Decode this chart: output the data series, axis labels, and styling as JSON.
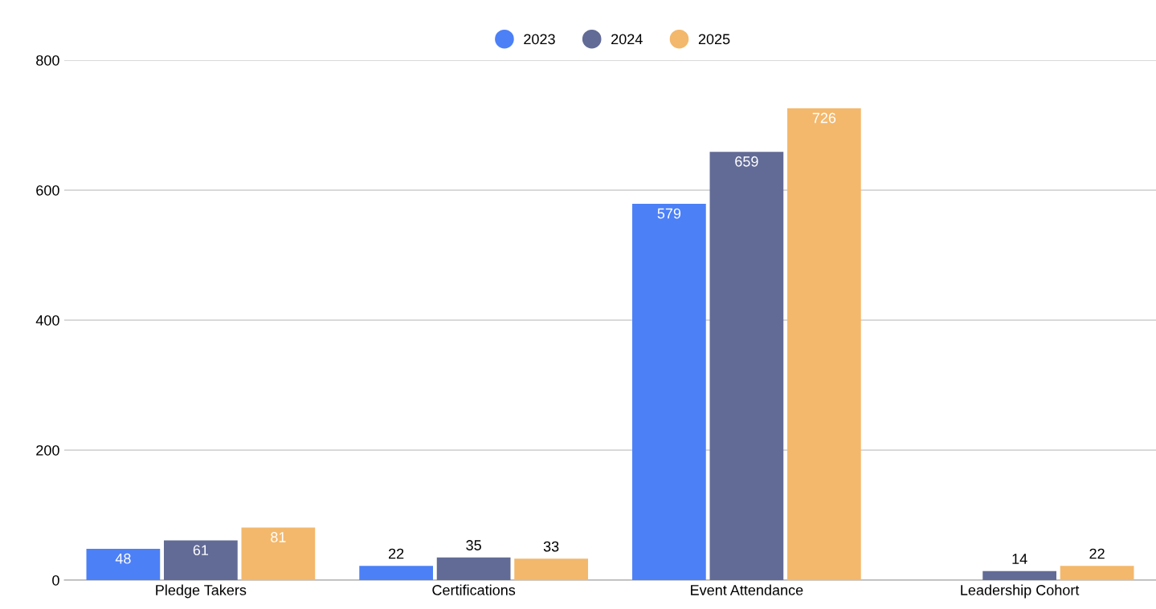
{
  "chart_data": {
    "type": "bar",
    "categories": [
      "Pledge Takers",
      "Certifications",
      "Event Attendance",
      "Leadership Cohort"
    ],
    "series": [
      {
        "name": "2023",
        "color": "#4c80f7",
        "values": [
          48,
          22,
          579,
          null
        ]
      },
      {
        "name": "2024",
        "color": "#626b96",
        "values": [
          61,
          35,
          659,
          14
        ]
      },
      {
        "name": "2025",
        "color": "#f3b86c",
        "values": [
          81,
          33,
          726,
          22
        ]
      }
    ],
    "ylim": [
      0,
      800
    ],
    "yticks": [
      0,
      200,
      400,
      600,
      800
    ],
    "grid": "y",
    "legend": "top",
    "data_labels": true
  }
}
